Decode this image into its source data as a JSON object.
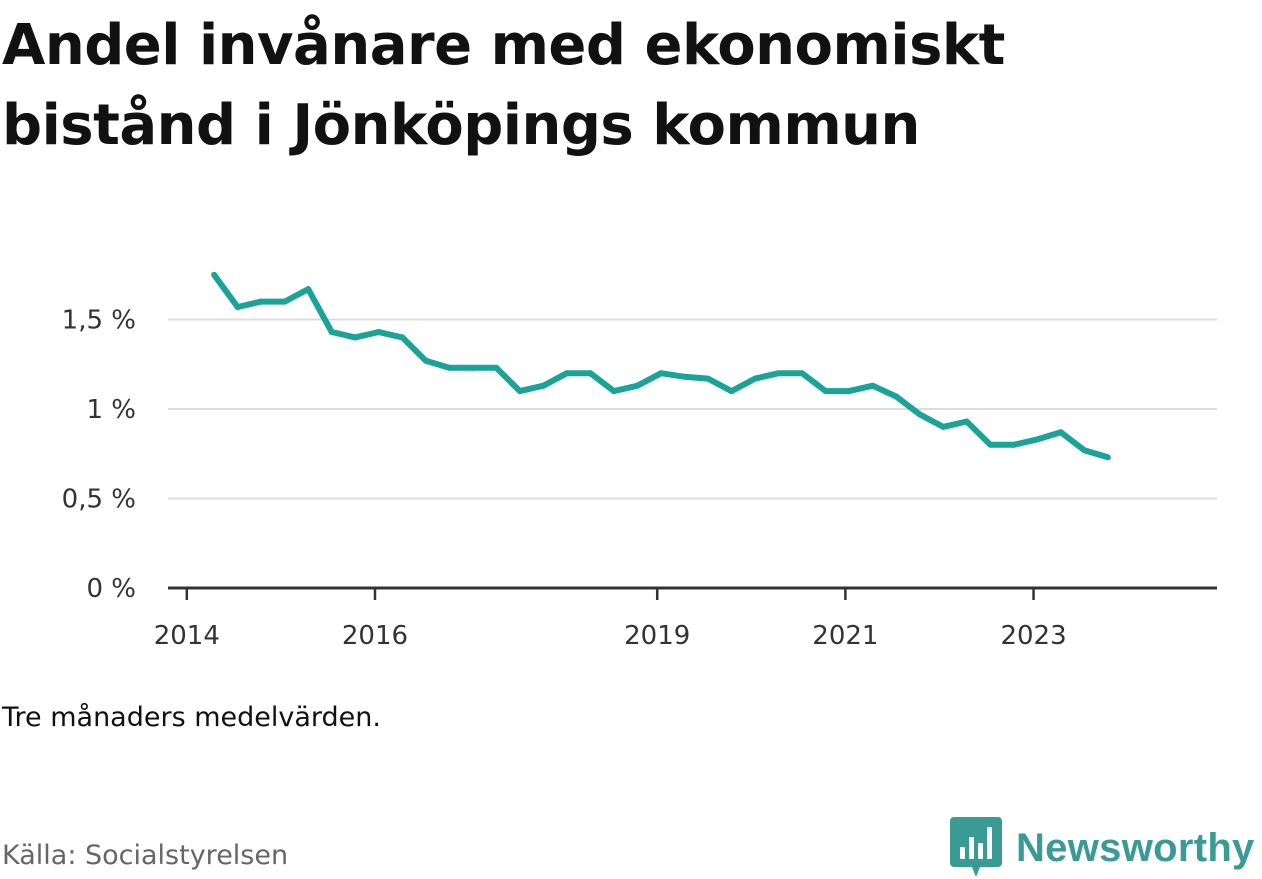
{
  "title": "Andel invånare med ekonomiskt bistånd i Jönköpings kommun",
  "note": "Tre månaders medelvärden.",
  "source": "Källa: Socialstyrelsen",
  "brand": {
    "name": "Newsworthy",
    "icon": "newsworthy-logo-icon",
    "color": "#3a9a94"
  },
  "colors": {
    "line": "#1aa396",
    "grid": "#dddddd",
    "axis": "#333333"
  },
  "chart_data": {
    "type": "line",
    "title": "Andel invånare med ekonomiskt bistånd i Jönköpings kommun",
    "xlabel": "",
    "ylabel": "",
    "xlim": [
      2013.8,
      2024.95
    ],
    "ylim": [
      0,
      2.0
    ],
    "y_ticks": [
      {
        "value": 0,
        "label": "0 %"
      },
      {
        "value": 0.5,
        "label": "0,5 %"
      },
      {
        "value": 1,
        "label": "1 %"
      },
      {
        "value": 1.5,
        "label": "1,5 %"
      }
    ],
    "x_ticks": [
      {
        "value": 2014,
        "label": "2014"
      },
      {
        "value": 2016,
        "label": "2016"
      },
      {
        "value": 2019,
        "label": "2019"
      },
      {
        "value": 2021,
        "label": "2021"
      },
      {
        "value": 2023,
        "label": "2023"
      }
    ],
    "series": [
      {
        "name": "Andel invånare med ekonomiskt bistånd",
        "x": [
          2014.29,
          2014.54,
          2014.79,
          2015.04,
          2015.29,
          2015.54,
          2015.79,
          2016.04,
          2016.29,
          2016.54,
          2016.79,
          2017.04,
          2017.29,
          2017.54,
          2017.79,
          2018.04,
          2018.29,
          2018.54,
          2018.79,
          2019.04,
          2019.29,
          2019.54,
          2019.79,
          2020.04,
          2020.29,
          2020.54,
          2020.79,
          2021.04,
          2021.29,
          2021.54,
          2021.79,
          2022.04,
          2022.29,
          2022.54,
          2022.79,
          2023.04,
          2023.29,
          2023.54,
          2023.79
        ],
        "values": [
          1.75,
          1.57,
          1.6,
          1.6,
          1.67,
          1.43,
          1.4,
          1.43,
          1.4,
          1.27,
          1.23,
          1.23,
          1.23,
          1.1,
          1.13,
          1.2,
          1.2,
          1.1,
          1.13,
          1.2,
          1.18,
          1.17,
          1.1,
          1.17,
          1.2,
          1.2,
          1.1,
          1.1,
          1.13,
          1.07,
          0.97,
          0.9,
          0.93,
          0.8,
          0.8,
          0.83,
          0.87,
          0.77,
          0.73
        ]
      }
    ]
  }
}
